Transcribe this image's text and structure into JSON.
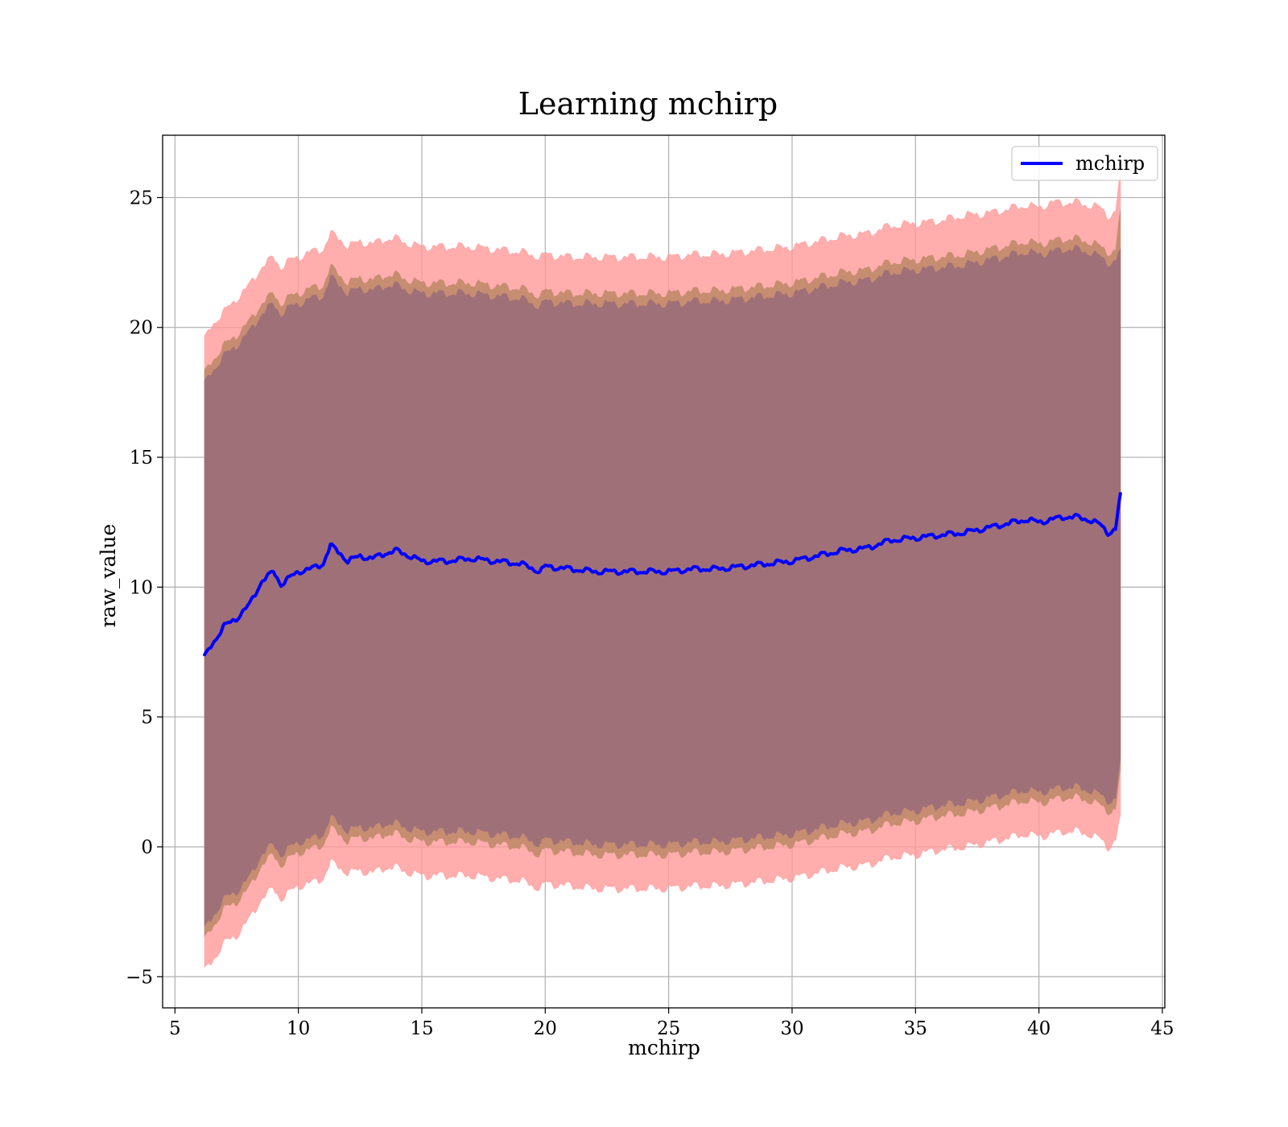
{
  "chart_data": {
    "type": "line",
    "title": "Learning mchirp",
    "xlabel": "mchirp",
    "ylabel": "raw_value",
    "xlim": [
      4.5,
      45.1
    ],
    "ylim": [
      -6.2,
      27.4
    ],
    "xticks": [
      5,
      10,
      15,
      20,
      25,
      30,
      35,
      40,
      45
    ],
    "yticks": [
      -5,
      0,
      5,
      10,
      15,
      20,
      25
    ],
    "x_tick_labels": [
      "5",
      "10",
      "15",
      "20",
      "25",
      "30",
      "35",
      "40",
      "45"
    ],
    "y_tick_labels": [
      "−5",
      "0",
      "5",
      "10",
      "15",
      "20",
      "25"
    ],
    "grid": true,
    "legend": {
      "placement": "top-right",
      "entries": [
        "mchirp"
      ]
    },
    "colors": {
      "line": "#0000ff",
      "band_outer": "#ff9999",
      "band_mid": "#c08a6a",
      "band_inner": "#a07078"
    },
    "series": [
      {
        "name": "mchirp",
        "x": [
          6.2,
          6.5,
          7,
          7.5,
          8,
          8.5,
          9,
          9.3,
          9.7,
          10,
          10.5,
          11,
          11.3,
          11.7,
          12,
          12.5,
          13,
          13.5,
          14,
          14.5,
          15,
          16,
          17,
          18,
          19,
          19.8,
          20,
          21,
          22,
          23,
          24,
          25,
          26,
          27,
          28,
          29,
          30,
          31,
          32,
          33,
          34,
          35,
          36,
          37,
          38,
          39,
          39.5,
          40,
          40.5,
          41,
          41.5,
          42,
          42.5,
          42.8,
          43.1,
          43.3
        ],
        "y": [
          7.3,
          7.8,
          8.5,
          8.8,
          9.3,
          10.2,
          10.6,
          10.1,
          10.4,
          10.6,
          10.7,
          10.9,
          11.6,
          11.3,
          11.0,
          11.2,
          11.1,
          11.3,
          11.4,
          11.2,
          11.0,
          11.0,
          11.1,
          11.0,
          10.9,
          10.6,
          10.8,
          10.7,
          10.6,
          10.6,
          10.6,
          10.6,
          10.7,
          10.7,
          10.8,
          10.9,
          11.0,
          11.2,
          11.4,
          11.5,
          11.8,
          11.9,
          12.0,
          12.1,
          12.3,
          12.5,
          12.6,
          12.5,
          12.6,
          12.7,
          12.7,
          12.6,
          12.4,
          12.1,
          12.2,
          13.6
        ],
        "band_outer_upper": [
          19.5,
          20.1,
          20.6,
          21.1,
          21.6,
          22.3,
          22.7,
          22.3,
          22.6,
          22.7,
          22.9,
          23.0,
          23.6,
          23.4,
          23.1,
          23.3,
          23.2,
          23.4,
          23.4,
          23.2,
          23.1,
          23.1,
          23.1,
          23.0,
          22.9,
          22.7,
          22.8,
          22.7,
          22.7,
          22.7,
          22.7,
          22.7,
          22.8,
          22.8,
          22.9,
          23.0,
          23.1,
          23.3,
          23.5,
          23.6,
          23.9,
          24.0,
          24.1,
          24.3,
          24.4,
          24.6,
          24.7,
          24.6,
          24.8,
          24.8,
          24.8,
          24.7,
          24.6,
          24.3,
          24.4,
          26.0
        ],
        "band_outer_lower": [
          -4.8,
          -4.4,
          -3.7,
          -3.4,
          -2.8,
          -2.0,
          -1.6,
          -2.0,
          -1.7,
          -1.5,
          -1.4,
          -1.2,
          -0.6,
          -0.8,
          -1.0,
          -0.9,
          -1.0,
          -0.8,
          -0.8,
          -1.0,
          -1.1,
          -1.1,
          -1.1,
          -1.2,
          -1.3,
          -1.6,
          -1.4,
          -1.5,
          -1.6,
          -1.6,
          -1.6,
          -1.6,
          -1.5,
          -1.5,
          -1.4,
          -1.3,
          -1.2,
          -1.0,
          -0.8,
          -0.7,
          -0.4,
          -0.3,
          -0.1,
          0.0,
          0.2,
          0.4,
          0.5,
          0.4,
          0.5,
          0.6,
          0.6,
          0.5,
          0.3,
          0.0,
          0.2,
          1.2
        ],
        "band_mid_upper": [
          18.2,
          18.7,
          19.3,
          19.7,
          20.2,
          20.9,
          21.3,
          20.9,
          21.2,
          21.3,
          21.5,
          21.6,
          22.3,
          22.0,
          21.7,
          21.9,
          21.8,
          22.0,
          22.0,
          21.8,
          21.7,
          21.7,
          21.7,
          21.6,
          21.5,
          21.2,
          21.4,
          21.3,
          21.3,
          21.3,
          21.3,
          21.3,
          21.4,
          21.4,
          21.5,
          21.6,
          21.7,
          21.9,
          22.1,
          22.2,
          22.5,
          22.6,
          22.7,
          22.8,
          23.0,
          23.2,
          23.3,
          23.2,
          23.3,
          23.4,
          23.4,
          23.3,
          23.1,
          22.9,
          22.9,
          24.5
        ],
        "band_mid_lower": [
          -3.6,
          -3.1,
          -2.4,
          -2.1,
          -1.6,
          -0.7,
          -0.3,
          -0.7,
          -0.4,
          -0.2,
          -0.1,
          0.1,
          0.7,
          0.5,
          0.2,
          0.4,
          0.3,
          0.5,
          0.5,
          0.3,
          0.2,
          0.2,
          0.2,
          0.1,
          0.0,
          -0.3,
          -0.1,
          -0.2,
          -0.3,
          -0.3,
          -0.3,
          -0.3,
          -0.2,
          -0.2,
          -0.1,
          0.0,
          0.1,
          0.3,
          0.5,
          0.6,
          0.9,
          1.0,
          1.2,
          1.3,
          1.5,
          1.7,
          1.8,
          1.7,
          1.8,
          1.9,
          1.9,
          1.8,
          1.6,
          1.4,
          1.4,
          3.0
        ],
        "band_inner_upper": [
          17.8,
          18.3,
          18.9,
          19.3,
          19.8,
          20.5,
          20.9,
          20.5,
          20.8,
          20.9,
          21.1,
          21.2,
          21.9,
          21.6,
          21.3,
          21.5,
          21.4,
          21.6,
          21.6,
          21.4,
          21.3,
          21.3,
          21.3,
          21.2,
          21.1,
          20.8,
          21.0,
          20.9,
          20.9,
          20.9,
          20.9,
          20.9,
          21.0,
          21.0,
          21.1,
          21.2,
          21.3,
          21.5,
          21.7,
          21.8,
          22.1,
          22.2,
          22.3,
          22.4,
          22.6,
          22.8,
          22.9,
          22.8,
          22.9,
          23.0,
          23.0,
          22.9,
          22.7,
          22.5,
          22.5,
          23.0
        ],
        "band_inner_lower": [
          -3.2,
          -2.7,
          -2.0,
          -1.7,
          -1.2,
          -0.3,
          0.1,
          -0.3,
          0.0,
          0.2,
          0.3,
          0.5,
          1.1,
          0.9,
          0.6,
          0.8,
          0.7,
          0.9,
          0.9,
          0.7,
          0.6,
          0.6,
          0.6,
          0.5,
          0.4,
          0.1,
          0.3,
          0.2,
          0.1,
          0.1,
          0.1,
          0.1,
          0.2,
          0.2,
          0.3,
          0.4,
          0.5,
          0.7,
          0.9,
          1.0,
          1.3,
          1.4,
          1.6,
          1.7,
          1.9,
          2.1,
          2.2,
          2.1,
          2.2,
          2.3,
          2.3,
          2.2,
          2.0,
          1.8,
          1.8,
          3.4
        ]
      }
    ]
  }
}
